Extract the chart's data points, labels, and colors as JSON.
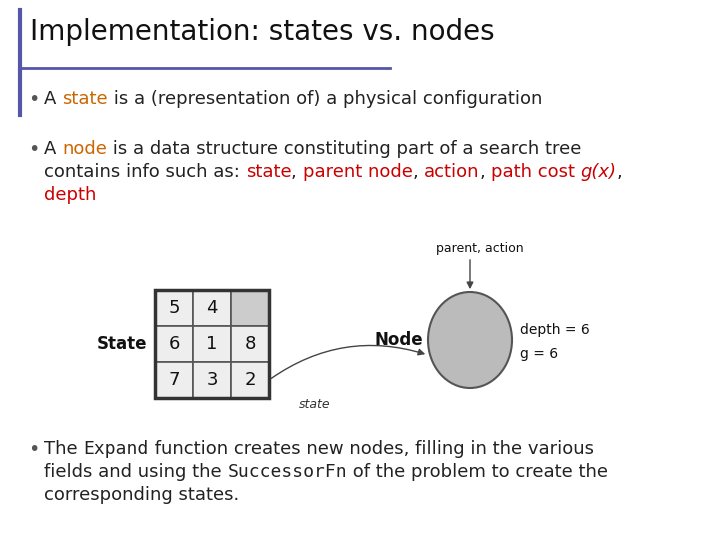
{
  "title": "Implementation: states vs. nodes",
  "bg_color": "#ffffff",
  "title_color": "#111111",
  "title_fontsize": 20,
  "accent_line_color": "#5555aa",
  "body_fontsize": 13,
  "grid_values": [
    [
      "5",
      "4",
      ""
    ],
    [
      "6",
      "1",
      "8"
    ],
    [
      "7",
      "3",
      "2"
    ]
  ],
  "node_color": "#bbbbbb",
  "node_ec": "#555555"
}
